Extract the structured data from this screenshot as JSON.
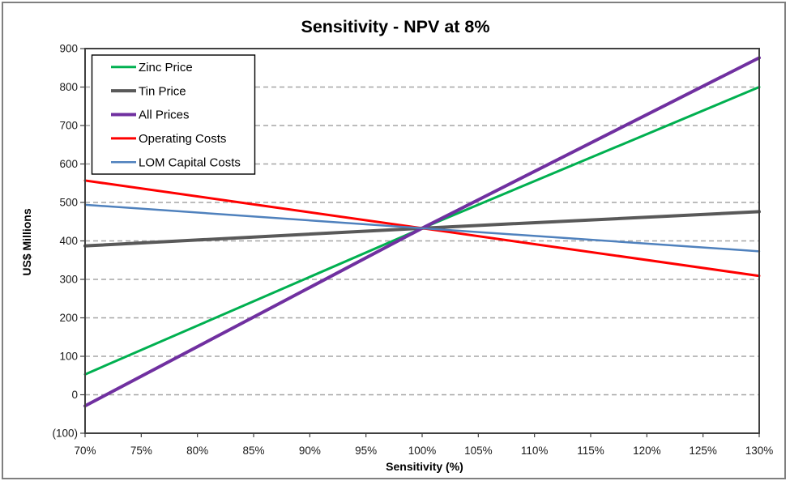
{
  "chart_data": {
    "type": "line",
    "title": "Sensitivity - NPV at 8%",
    "xlabel": "Sensitivity (%)",
    "ylabel": "US$ Millions",
    "xlim": [
      70,
      130
    ],
    "ylim": [
      -100,
      900
    ],
    "base_case_npv": 433,
    "x": [
      70,
      100,
      130
    ],
    "series": [
      {
        "name": "Zinc Price",
        "color": "#00B050",
        "width": 3,
        "values": [
          53,
          433,
          800
        ]
      },
      {
        "name": "Tin Price",
        "color": "#595959",
        "width": 4,
        "values": [
          387,
          433,
          476
        ]
      },
      {
        "name": "All Prices",
        "color": "#7030A0",
        "width": 4,
        "values": [
          -29,
          433,
          876
        ]
      },
      {
        "name": "Operating Costs",
        "color": "#FF0000",
        "width": 3,
        "values": [
          557,
          433,
          309
        ]
      },
      {
        "name": "LOM Capital Costs",
        "color": "#4F81BD",
        "width": 2.5,
        "values": [
          494,
          433,
          373
        ]
      }
    ],
    "x_ticks": [
      {
        "value": 70,
        "label": "70%"
      },
      {
        "value": 75,
        "label": "75%"
      },
      {
        "value": 80,
        "label": "80%"
      },
      {
        "value": 85,
        "label": "85%"
      },
      {
        "value": 90,
        "label": "90%"
      },
      {
        "value": 95,
        "label": "95%"
      },
      {
        "value": 100,
        "label": "100%"
      },
      {
        "value": 105,
        "label": "105%"
      },
      {
        "value": 110,
        "label": "110%"
      },
      {
        "value": 115,
        "label": "115%"
      },
      {
        "value": 120,
        "label": "120%"
      },
      {
        "value": 125,
        "label": "125%"
      },
      {
        "value": 130,
        "label": "130%"
      }
    ],
    "y_ticks": [
      {
        "value": 900,
        "label": "900"
      },
      {
        "value": 800,
        "label": "800"
      },
      {
        "value": 700,
        "label": "700"
      },
      {
        "value": 600,
        "label": "600"
      },
      {
        "value": 500,
        "label": "500"
      },
      {
        "value": 400,
        "label": "400"
      },
      {
        "value": 300,
        "label": "300"
      },
      {
        "value": 200,
        "label": "200"
      },
      {
        "value": 100,
        "label": "100"
      },
      {
        "value": 0,
        "label": "0"
      },
      {
        "value": -100,
        "label": "(100)"
      }
    ],
    "gridlines": [
      0,
      100,
      200,
      300,
      400,
      500,
      600,
      700,
      800
    ],
    "grid": "dashed-horizontal",
    "grid_color": "#A6A6A6",
    "axis_color": "#404040",
    "legend_position": "top-left",
    "legend_border_color": "#000000"
  }
}
